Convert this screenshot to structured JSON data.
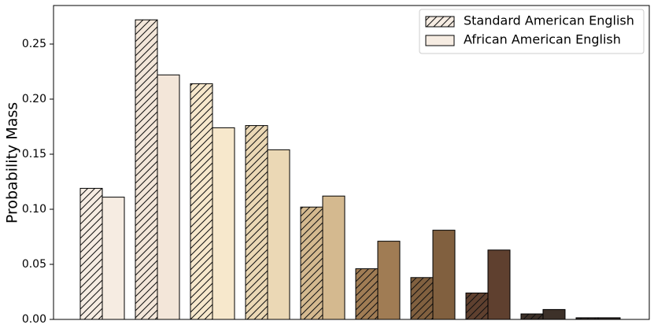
{
  "chart_data": {
    "type": "bar",
    "ylabel": "Probability Mass",
    "categories": [
      null,
      null,
      null,
      null,
      null,
      null,
      null,
      null,
      null,
      null
    ],
    "colors": [
      "#f6ece2",
      "#f3e6d9",
      "#f7e8cc",
      "#ebd8b5",
      "#d4b98f",
      "#a07c54",
      "#81603f",
      "#5f402f",
      "#3d3129",
      "#2b2521"
    ],
    "series": [
      {
        "name": "Standard American English",
        "hatch": true,
        "values": [
          0.119,
          0.272,
          0.214,
          0.176,
          0.102,
          0.046,
          0.038,
          0.024,
          0.005,
          0.0015
        ]
      },
      {
        "name": "African American English",
        "hatch": false,
        "values": [
          0.111,
          0.222,
          0.174,
          0.154,
          0.112,
          0.071,
          0.081,
          0.063,
          0.009,
          0.0015
        ]
      }
    ],
    "ylim": [
      0,
      0.285
    ],
    "yticks": [
      {
        "value": 0,
        "label": "0.00"
      },
      {
        "value": 0.05,
        "label": "0.05"
      },
      {
        "value": 0.1,
        "label": "0.10"
      },
      {
        "value": 0.15,
        "label": "0.15"
      },
      {
        "value": 0.2,
        "label": "0.20"
      },
      {
        "value": 0.25,
        "label": "0.25"
      }
    ],
    "legend": "upper right",
    "grid": false
  }
}
